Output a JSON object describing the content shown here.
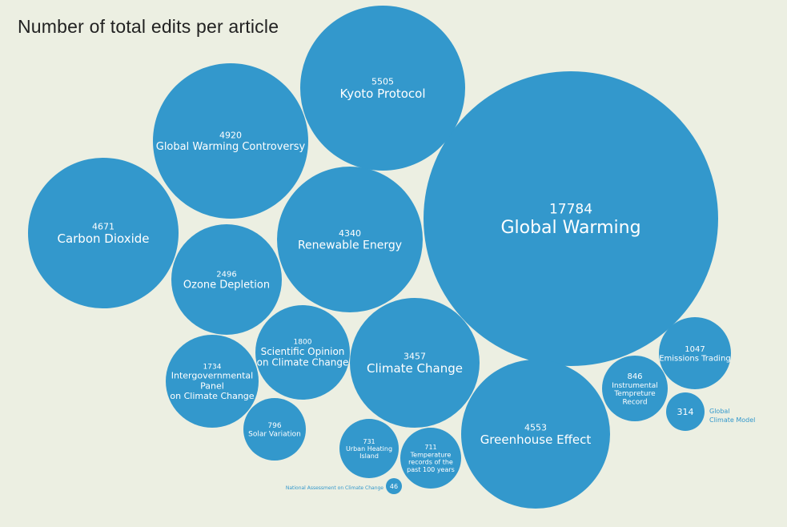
{
  "title": "Number of total edits per article",
  "colors": {
    "background": "#ecefe2",
    "bubble": "#3398cc",
    "text": "#ffffff",
    "title": "#222222"
  },
  "chart_data": {
    "type": "bubble",
    "title": "Number of total edits per article",
    "xlabel": "",
    "ylabel": "",
    "series": [
      {
        "name": "Global Warming",
        "value": 17784
      },
      {
        "name": "Kyoto Protocol",
        "value": 5505
      },
      {
        "name": "Global Warming Controversy",
        "value": 4920
      },
      {
        "name": "Carbon Dioxide",
        "value": 4671
      },
      {
        "name": "Greenhouse Effect",
        "value": 4553
      },
      {
        "name": "Renewable Energy",
        "value": 4340
      },
      {
        "name": "Climate Change",
        "value": 3457
      },
      {
        "name": "Ozone Depletion",
        "value": 2496
      },
      {
        "name": "Scientific Opinion on Climate Change",
        "value": 1800
      },
      {
        "name": "Intergovernmental Panel on Climate Change",
        "value": 1734
      },
      {
        "name": "Emissions Trading",
        "value": 1047
      },
      {
        "name": "Instrumental Tempreture Record",
        "value": 846
      },
      {
        "name": "Solar Variation",
        "value": 796
      },
      {
        "name": "Urban Heating Island",
        "value": 731
      },
      {
        "name": "Temperature records of the past 100 years",
        "value": 711
      },
      {
        "name": "Global Climate Model",
        "value": 314
      },
      {
        "name": "National Assessment on Climate Change",
        "value": 46
      }
    ]
  }
}
